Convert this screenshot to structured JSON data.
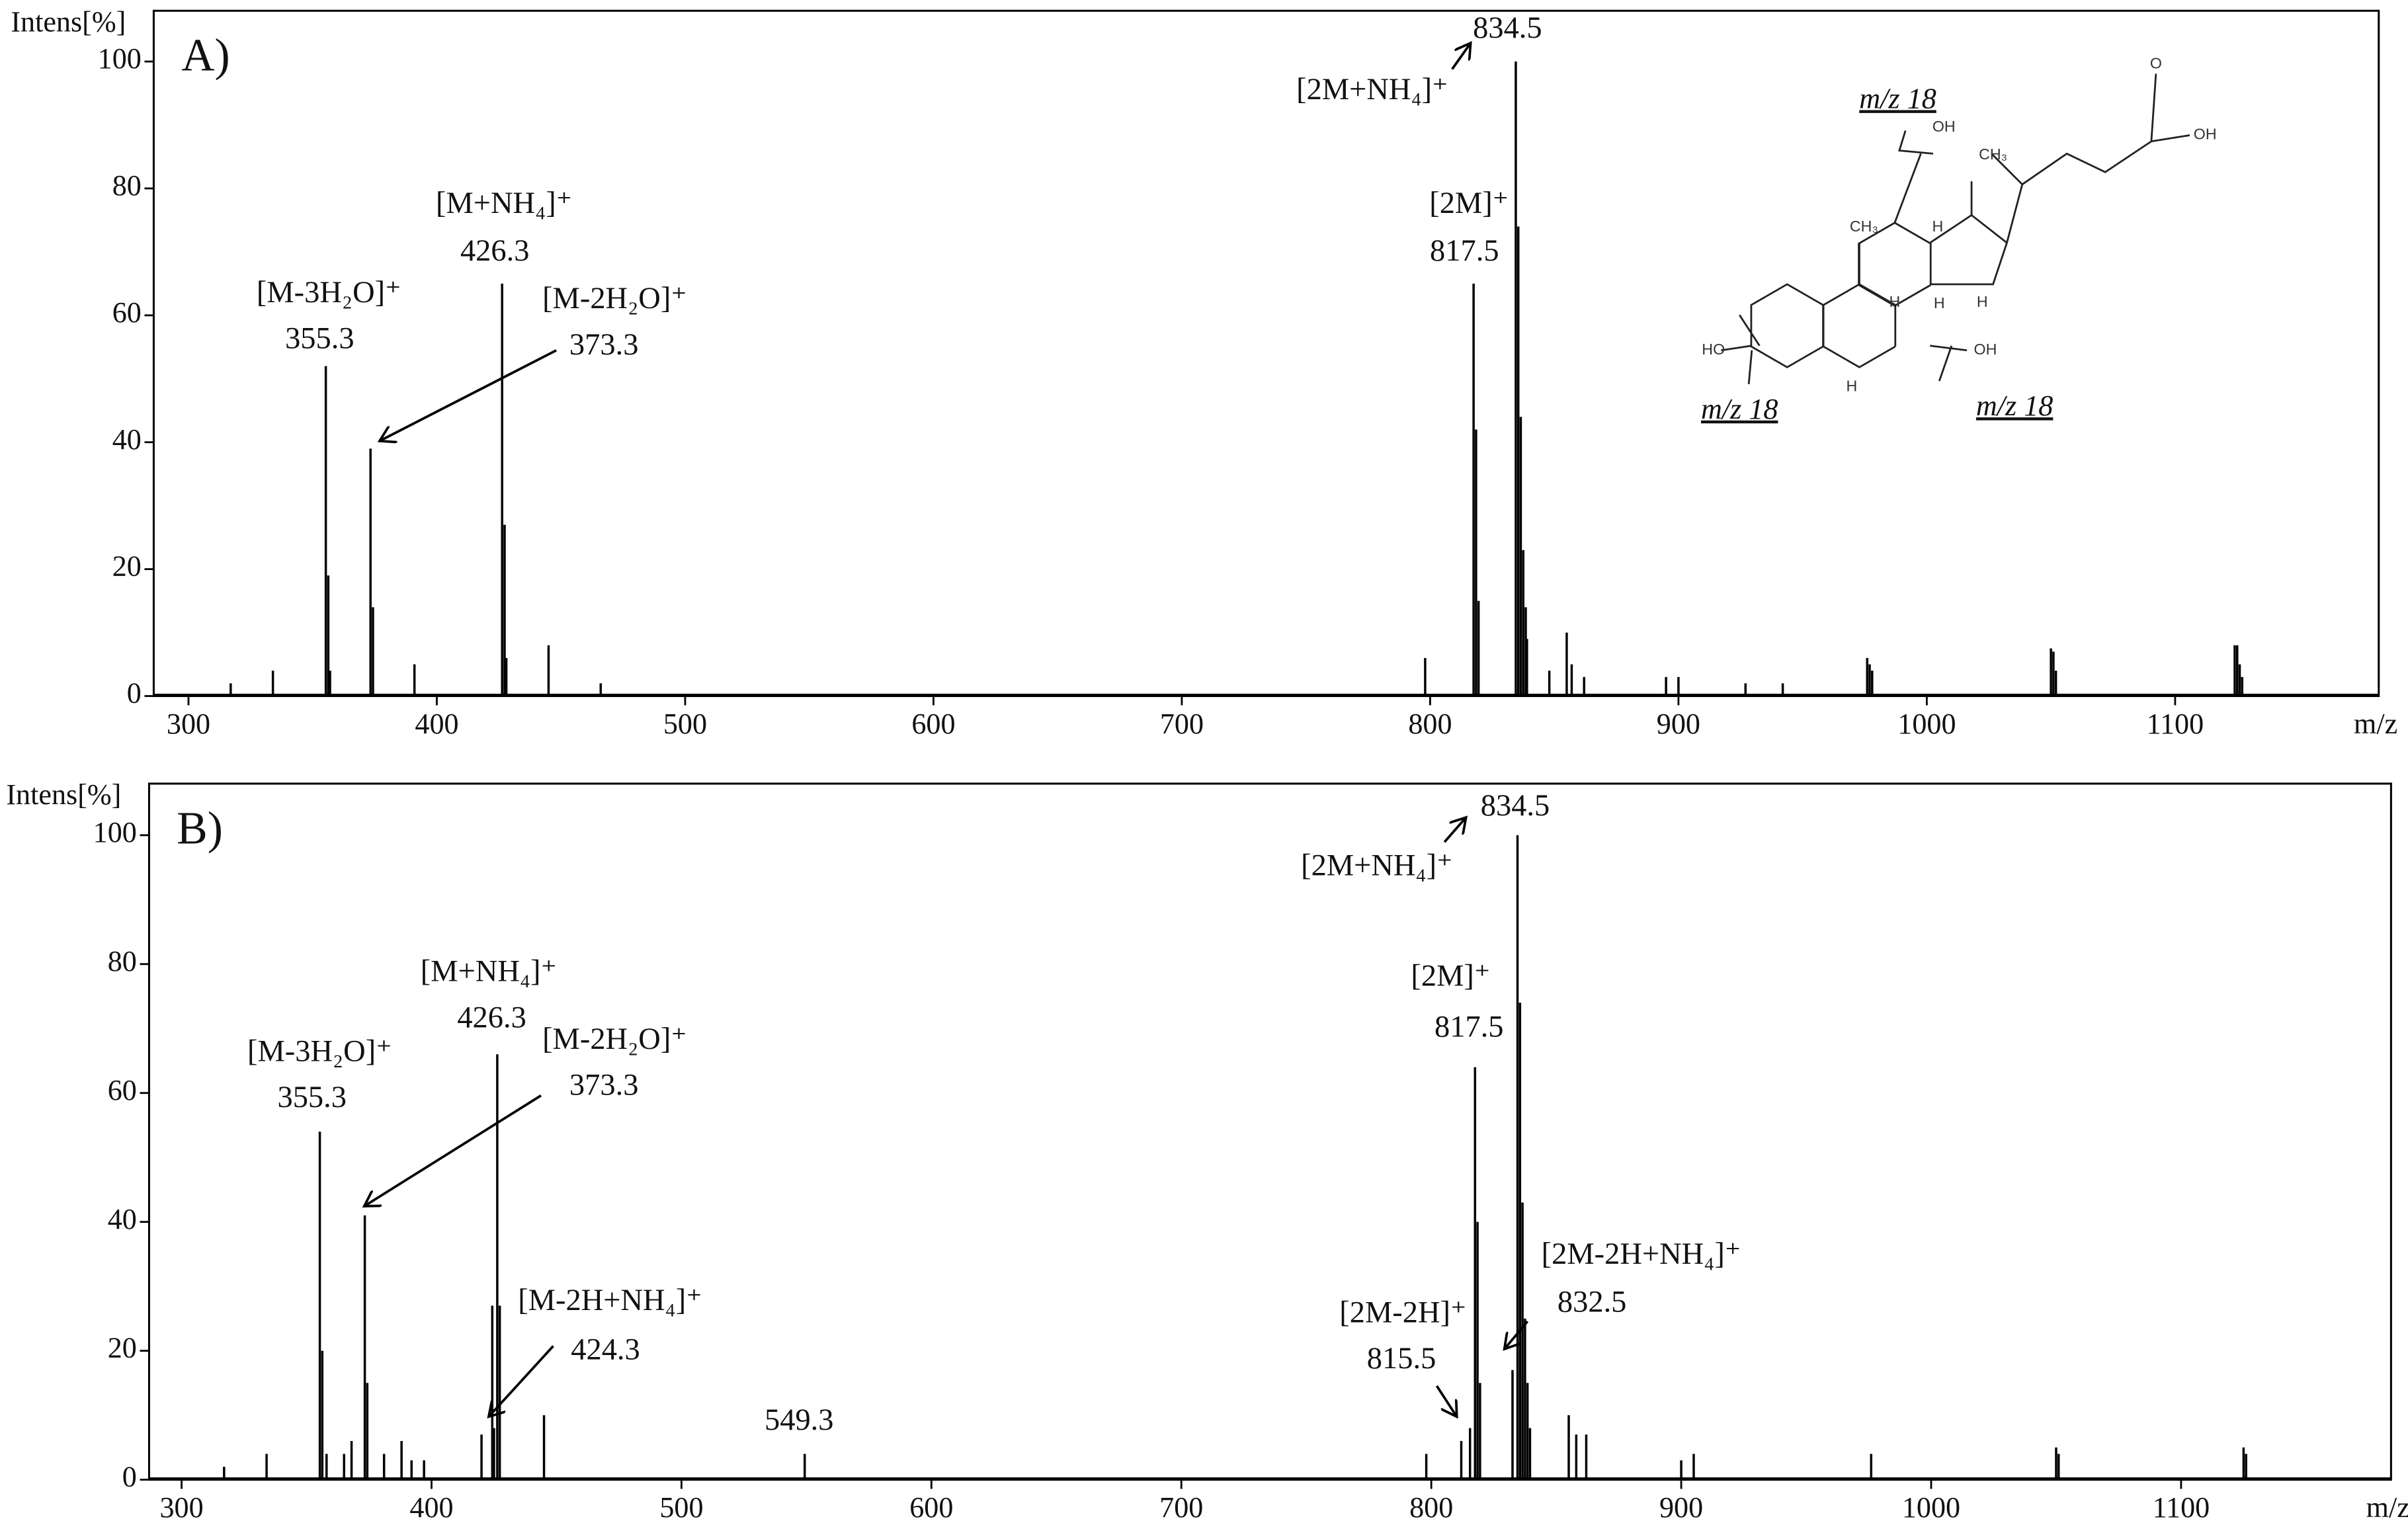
{
  "chart_data": [
    {
      "type": "spectrum",
      "panel_label": "A)",
      "y_label": "Intens[%]",
      "x_label": "m/z",
      "color": "#000000",
      "xlim": [
        286,
        1182
      ],
      "ylim": [
        0,
        108
      ],
      "xticks": [
        300,
        400,
        500,
        600,
        700,
        800,
        900,
        1000,
        1100
      ],
      "yticks": [
        0,
        20,
        40,
        60,
        80,
        100
      ],
      "x": [
        317,
        334,
        355.3,
        356.3,
        357,
        373.3,
        374.3,
        391,
        426.3,
        427.3,
        428,
        445,
        466,
        798,
        817.5,
        818.5,
        819.5,
        834.5,
        835.5,
        836.5,
        837.5,
        838.5,
        839,
        848,
        855,
        857,
        862,
        895,
        900,
        927,
        942,
        976,
        977,
        978,
        1050,
        1051,
        1052,
        1124,
        1125,
        1126,
        1127
      ],
      "values": [
        2,
        4,
        52,
        19,
        4,
        39,
        14,
        5,
        65,
        27,
        6,
        8,
        2,
        6,
        65,
        42,
        15,
        100,
        74,
        44,
        23,
        14,
        9,
        4,
        10,
        5,
        3,
        3,
        3,
        2,
        2,
        6,
        5,
        4,
        7.5,
        7,
        4,
        8,
        8,
        5,
        3
      ],
      "annotations": [
        {
          "ion": "[M-3H₂O]⁺",
          "mz": 355.3
        },
        {
          "ion": "[M+NH₄]⁺",
          "mz": 426.3
        },
        {
          "ion": "[M-2H₂O]⁺",
          "mz": 373.3
        },
        {
          "ion": "[2M]⁺",
          "mz": 817.5
        },
        {
          "ion": "[2M+NH₄]⁺",
          "mz": 834.5
        }
      ]
    },
    {
      "type": "spectrum",
      "panel_label": "B)",
      "y_label": "Intens[%]",
      "x_label": "m/z",
      "color": "#000000",
      "xlim": [
        287,
        1184
      ],
      "ylim": [
        0,
        108
      ],
      "xticks": [
        300,
        400,
        500,
        600,
        700,
        800,
        900,
        1000,
        1100
      ],
      "yticks": [
        0,
        20,
        40,
        60,
        80,
        100
      ],
      "x": [
        317,
        334,
        355.3,
        356.3,
        358,
        365,
        368,
        373.3,
        374.3,
        381,
        388,
        392,
        397,
        420,
        424.3,
        425,
        426.3,
        427.3,
        445,
        549.3,
        798,
        812,
        815.5,
        817.5,
        818.5,
        819.5,
        832.5,
        834.5,
        835.5,
        836.5,
        837.5,
        838.5,
        839.5,
        855,
        858,
        862,
        900,
        905,
        976,
        1050,
        1051,
        1125,
        1126
      ],
      "values": [
        2,
        4,
        54,
        20,
        4,
        4,
        6,
        41,
        15,
        4,
        6,
        3,
        3,
        7,
        27,
        8,
        66,
        27,
        10,
        4,
        4,
        6,
        8,
        64,
        40,
        15,
        17,
        100,
        74,
        43,
        25,
        15,
        8,
        10,
        7,
        7,
        3,
        4,
        4,
        5,
        4,
        5,
        4
      ],
      "annotations": [
        {
          "ion": "[M-3H₂O]⁺",
          "mz": 355.3
        },
        {
          "ion": "[M+NH₄]⁺",
          "mz": 426.3
        },
        {
          "ion": "[M-2H₂O]⁺",
          "mz": 373.3
        },
        {
          "ion": "[M-2H+NH₄]⁺",
          "mz": 424.3
        },
        {
          "mz": 549.3
        },
        {
          "ion": "[2M-2H]⁺",
          "mz": 815.5
        },
        {
          "ion": "[2M]⁺",
          "mz": 817.5
        },
        {
          "ion": "[2M+NH₄]⁺",
          "mz": 834.5
        },
        {
          "ion": "[2M-2H+NH₄]⁺",
          "mz": 832.5
        }
      ]
    }
  ],
  "structure": {
    "labels": [
      "m/z 18",
      "OH",
      "CH₃",
      "CH₃",
      "H",
      "H",
      "H",
      "H",
      "HO",
      "OH",
      "H",
      "m/z 18",
      "m/z 18",
      "O",
      "OH"
    ]
  }
}
